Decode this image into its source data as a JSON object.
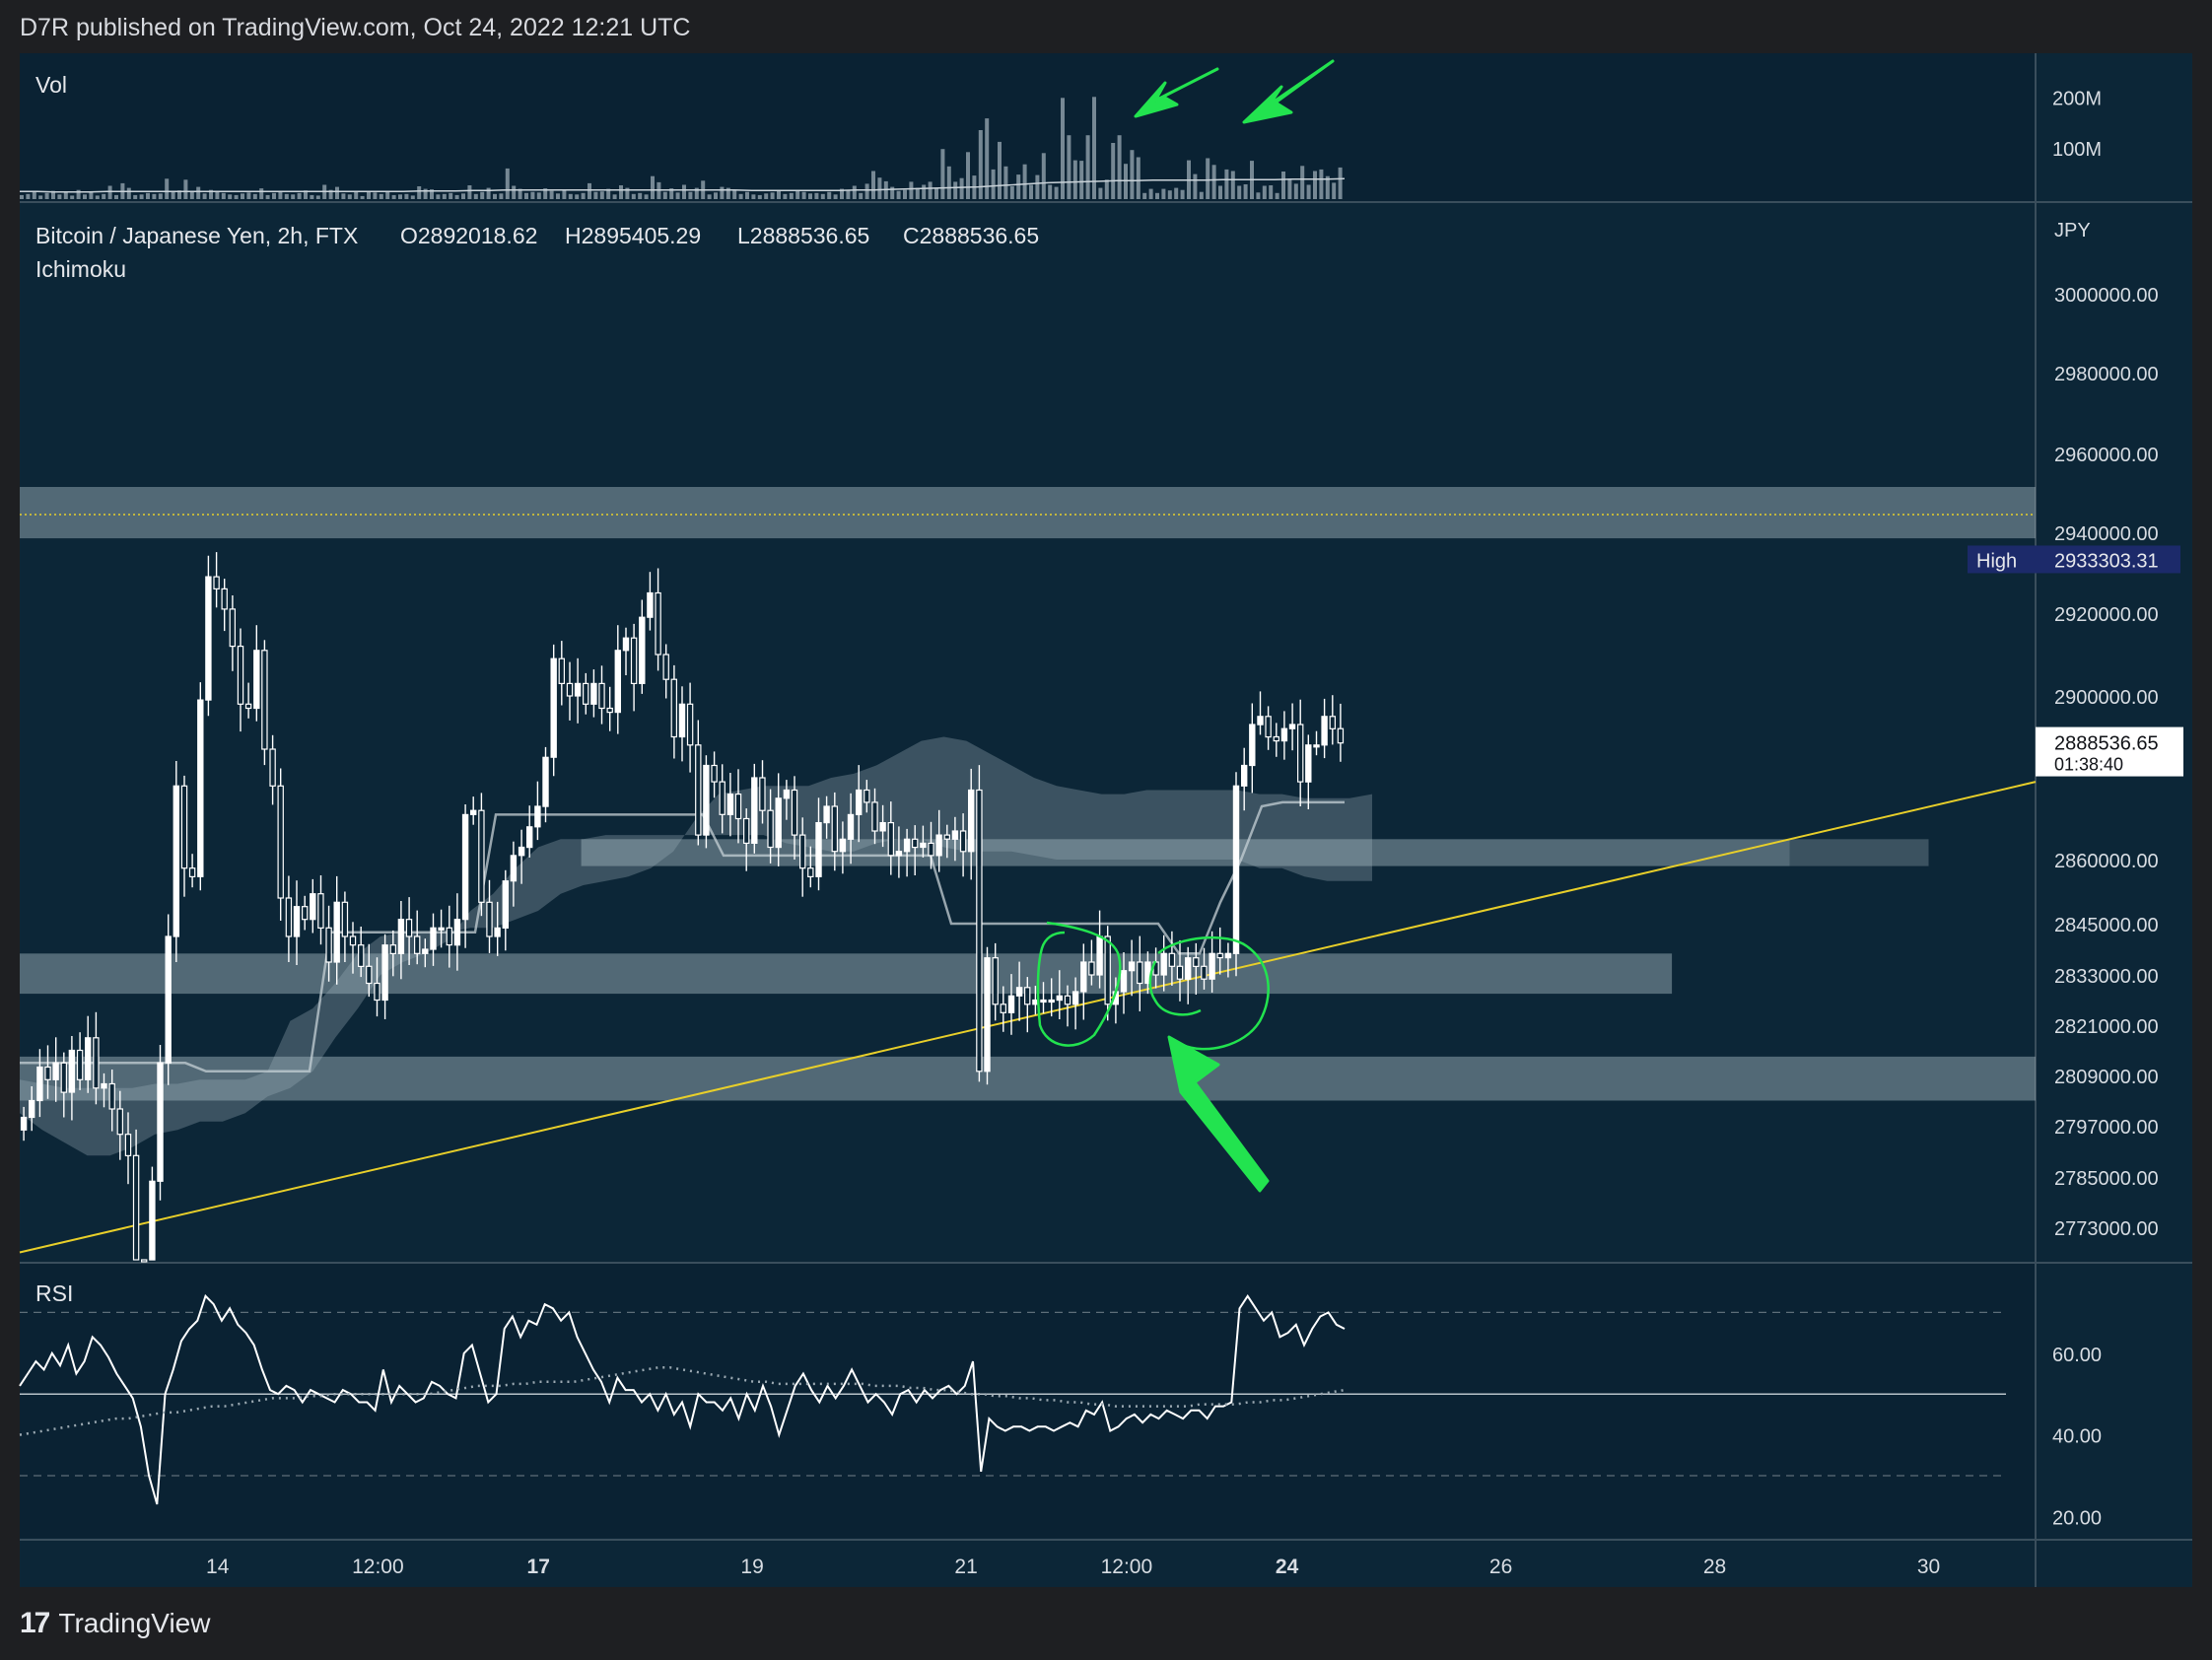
{
  "header": {
    "published": "D7R published on TradingView.com, Oct 24, 2022 12:21 UTC"
  },
  "footer": {
    "brand": "TradingView"
  },
  "colors": {
    "page_bg": "#1e1f22",
    "chart_bg": "#0c2637",
    "candle": "#ffffff",
    "zone": "#7a8e98",
    "trendline": "#e8cf2a",
    "annotation_green": "#22e34f",
    "price_tag_bg": "#1c2a6a"
  },
  "chart_data": [
    {
      "type": "bar",
      "panel": "volume",
      "title": "Vol",
      "y_ticks": [
        "200M",
        "100M"
      ],
      "ylim": [
        0,
        270
      ],
      "y_unit": "M",
      "values": [
        8,
        10,
        14,
        7,
        12,
        16,
        9,
        13,
        7,
        18,
        9,
        14,
        7,
        10,
        26,
        8,
        31,
        22,
        8,
        9,
        12,
        10,
        11,
        40,
        14,
        17,
        38,
        16,
        24,
        11,
        18,
        14,
        12,
        9,
        8,
        11,
        13,
        10,
        21,
        8,
        12,
        14,
        10,
        9,
        12,
        17,
        8,
        7,
        28,
        18,
        24,
        11,
        9,
        14,
        6,
        14,
        13,
        10,
        16,
        8,
        9,
        10,
        7,
        25,
        20,
        19,
        9,
        10,
        12,
        8,
        11,
        27,
        10,
        14,
        22,
        10,
        11,
        60,
        26,
        20,
        12,
        14,
        13,
        21,
        16,
        11,
        19,
        10,
        9,
        12,
        31,
        14,
        15,
        20,
        9,
        27,
        22,
        10,
        12,
        9,
        45,
        33,
        14,
        21,
        13,
        28,
        14,
        22,
        36,
        9,
        13,
        24,
        22,
        18,
        10,
        14,
        9,
        8,
        11,
        13,
        18,
        10,
        12,
        16,
        14,
        11,
        12,
        10,
        14,
        9,
        20,
        17,
        26,
        12,
        30,
        55,
        42,
        35,
        24,
        16,
        18,
        34,
        22,
        28,
        34,
        21,
        98,
        64,
        34,
        41,
        92,
        46,
        135,
        158,
        58,
        112,
        64,
        25,
        48,
        68,
        28,
        47,
        90,
        28,
        24,
        198,
        125,
        76,
        75,
        125,
        200,
        22,
        38,
        110,
        125,
        69,
        96,
        82,
        12,
        20,
        12,
        20,
        17,
        22,
        18,
        76,
        49,
        14,
        80,
        67,
        26,
        58,
        55,
        26,
        29,
        75,
        13,
        26,
        27,
        12,
        54,
        40,
        30,
        65,
        28,
        55,
        58,
        45,
        32,
        62
      ],
      "avg_line": [
        15,
        15,
        14,
        14,
        14,
        15,
        15,
        15,
        15,
        15,
        15,
        15,
        15,
        15,
        15,
        15,
        15,
        15,
        15,
        15,
        15,
        15,
        15,
        16,
        16,
        16,
        17,
        17,
        18,
        18,
        18,
        18,
        18,
        18,
        18,
        18,
        18,
        18,
        18,
        18,
        18,
        18,
        17,
        17,
        17,
        17,
        17,
        17,
        18,
        18,
        19,
        20,
        21,
        22,
        23,
        24,
        26,
        28,
        30,
        32,
        33,
        34,
        35,
        36,
        36,
        37,
        37,
        37,
        37,
        38,
        38,
        38,
        38,
        39,
        39,
        39,
        40
      ]
    },
    {
      "type": "candlestick",
      "panel": "price",
      "title": "Bitcoin / Japanese Yen, 2h, FTX",
      "indicator": "Ichimoku",
      "ohlc": {
        "O": "O2892018.62",
        "H": "H2895405.29",
        "L": "L2888536.65",
        "C": "C2888536.65"
      },
      "currency": "JPY",
      "ylim": [
        2764000,
        3010000
      ],
      "y_ticks": [
        "3000000.00",
        "2980000.00",
        "2960000.00",
        "2940000.00",
        "2920000.00",
        "2900000.00",
        "2860000.00",
        "2845000.00",
        "2833000.00",
        "2821000.00",
        "2809000.00",
        "2797000.00",
        "2785000.00",
        "2773000.00"
      ],
      "y_tick_values": [
        3000000,
        2980000,
        2960000,
        2940000,
        2920000,
        2900000,
        2860000,
        2845000,
        2833000,
        2821000,
        2809000,
        2797000,
        2785000,
        2773000
      ],
      "x_ticks": [
        {
          "label": "14",
          "x": 14.0,
          "bold": false
        },
        {
          "label": "12:00",
          "x": 15.5,
          "bold": false
        },
        {
          "label": "17",
          "x": 17.0,
          "bold": true
        },
        {
          "label": "19",
          "x": 19.0,
          "bold": false
        },
        {
          "label": "21",
          "x": 21.0,
          "bold": false
        },
        {
          "label": "12:00",
          "x": 22.5,
          "bold": false
        },
        {
          "label": "24",
          "x": 24.0,
          "bold": true
        },
        {
          "label": "26",
          "x": 26.0,
          "bold": false
        },
        {
          "label": "28",
          "x": 28.0,
          "bold": false
        },
        {
          "label": "30",
          "x": 30.0,
          "bold": false
        }
      ],
      "xlim": [
        12.15,
        31.0
      ],
      "high_label": {
        "text": "High",
        "value": "2933303.31",
        "price": 2933303.31
      },
      "last_price": {
        "value": "2888536.65",
        "countdown": "01:38:40",
        "price": 2888536.65
      },
      "resistance_line": 2944500,
      "zones": [
        {
          "from_x": 12.15,
          "to_x": 31.0,
          "low": 2938500,
          "high": 2951500
        },
        {
          "from_x": 17.4,
          "to_x": 28.7,
          "low": 2858500,
          "high": 2865000
        },
        {
          "from_x": 28.7,
          "to_x": 30.0,
          "low": 2858500,
          "high": 2865000
        },
        {
          "from_x": 12.15,
          "to_x": 27.6,
          "low": 2828500,
          "high": 2838000
        },
        {
          "from_x": 12.15,
          "to_x": 31.0,
          "low": 2803000,
          "high": 2813500
        }
      ],
      "trendline": [
        [
          12.15,
          2767000
        ],
        [
          31.0,
          2879000
        ]
      ],
      "closes": [
        2799000,
        2803000,
        2811000,
        2808000,
        2812000,
        2805000,
        2815000,
        2808000,
        2818000,
        2806000,
        2807000,
        2801000,
        2795000,
        2790000,
        2760000,
        2750000,
        2784000,
        2812000,
        2842000,
        2878000,
        2858000,
        2856000,
        2899000,
        2929000,
        2926000,
        2921000,
        2912000,
        2898000,
        2897000,
        2911000,
        2887000,
        2878000,
        2851000,
        2842000,
        2849000,
        2846000,
        2852000,
        2844000,
        2836000,
        2850000,
        2842000,
        2840000,
        2835000,
        2831000,
        2827000,
        2840000,
        2838000,
        2846000,
        2842000,
        2838000,
        2839000,
        2844000,
        2844000,
        2840000,
        2846000,
        2871000,
        2872000,
        2850000,
        2842000,
        2844000,
        2855000,
        2861000,
        2863000,
        2868000,
        2873000,
        2885000,
        2909000,
        2903000,
        2900000,
        2903000,
        2898000,
        2903000,
        2897000,
        2896000,
        2911000,
        2914000,
        2903000,
        2919000,
        2925000,
        2910000,
        2904000,
        2890000,
        2898000,
        2888000,
        2866000,
        2883000,
        2879000,
        2871000,
        2876000,
        2870000,
        2864000,
        2880000,
        2872000,
        2863000,
        2875000,
        2877000,
        2866000,
        2858000,
        2856000,
        2869000,
        2873000,
        2862000,
        2865000,
        2871000,
        2877000,
        2874000,
        2867000,
        2869000,
        2861000,
        2862000,
        2865000,
        2863000,
        2864000,
        2861000,
        2866000,
        2865000,
        2867000,
        2862000,
        2877000,
        2810000,
        2837000,
        2826000,
        2824000,
        2828000,
        2830000,
        2826000,
        2827000,
        2827000,
        2827000,
        2828000,
        2826000,
        2829000,
        2836000,
        2833000,
        2842000,
        2826000,
        2829000,
        2834000,
        2836000,
        2831000,
        2836000,
        2833000,
        2838000,
        2835000,
        2832000,
        2837000,
        2835000,
        2832000,
        2838000,
        2837000,
        2838000,
        2878000,
        2883000,
        2893000,
        2895000,
        2890000,
        2889000,
        2892000,
        2893000,
        2879000,
        2888000,
        2888000,
        2895000,
        2892000,
        2888500
      ],
      "cloud_upper": [
        2808000,
        2807000,
        2806000,
        2806000,
        2806000,
        2806000,
        2807000,
        2807000,
        2808000,
        2808000,
        2808000,
        2810000,
        2822000,
        2825000,
        2831000,
        2838000,
        2842000,
        2843000,
        2843000,
        2843000,
        2844000,
        2844000,
        2846000,
        2848000,
        2852000,
        2854000,
        2855000,
        2856000,
        2858000,
        2862000,
        2870000,
        2876000,
        2877000,
        2878000,
        2878000,
        2878000,
        2880000,
        2881000,
        2883000,
        2886000,
        2889000,
        2890000,
        2889000,
        2886000,
        2883000,
        2880000,
        2878000,
        2877000,
        2876000,
        2876000,
        2877000,
        2877000,
        2877000,
        2877000,
        2877000,
        2876000,
        2876000,
        2875000,
        2875000,
        2875000,
        2876000
      ],
      "cloud_lower": [
        2800000,
        2796000,
        2793000,
        2790000,
        2790000,
        2792000,
        2795000,
        2796000,
        2798000,
        2798000,
        2800000,
        2804000,
        2806000,
        2810000,
        2818000,
        2825000,
        2833000,
        2836000,
        2838000,
        2841000,
        2848000,
        2852000,
        2858000,
        2863000,
        2865000,
        2865000,
        2866000,
        2866000,
        2866000,
        2866000,
        2866000,
        2866000,
        2866000,
        2866000,
        2864000,
        2863000,
        2862000,
        2862000,
        2864000,
        2865000,
        2865000,
        2863000,
        2862000,
        2862000,
        2862000,
        2861000,
        2860000,
        2860000,
        2860000,
        2860000,
        2860000,
        2860000,
        2860000,
        2860000,
        2860000,
        2858000,
        2858000,
        2856000,
        2855000,
        2855000,
        2855000
      ],
      "kijun": [
        2812000,
        2812000,
        2812000,
        2812000,
        2812000,
        2812000,
        2812000,
        2812000,
        2812000,
        2810000,
        2810000,
        2810000,
        2810000,
        2810000,
        2810000,
        2843000,
        2843000,
        2843000,
        2843000,
        2843000,
        2843000,
        2843000,
        2843000,
        2871000,
        2871000,
        2871000,
        2871000,
        2871000,
        2871000,
        2871000,
        2871000,
        2871000,
        2871000,
        2871000,
        2861000,
        2861000,
        2861000,
        2861000,
        2861000,
        2861000,
        2861000,
        2861000,
        2861000,
        2861000,
        2861000,
        2845000,
        2845000,
        2845000,
        2845000,
        2845000,
        2845000,
        2845000,
        2845000,
        2845000,
        2845000,
        2845000,
        2838000,
        2838000,
        2850000,
        2860000,
        2873000,
        2874000,
        2874000,
        2874000,
        2874000
      ]
    },
    {
      "type": "line",
      "panel": "rsi",
      "title": "RSI",
      "ylim": [
        16,
        80
      ],
      "y_ticks": [
        "60.00",
        "40.00",
        "20.00"
      ],
      "y_tick_values": [
        60,
        40,
        20
      ],
      "bands": [
        70,
        50,
        30
      ],
      "series": [
        {
          "role": "rsi",
          "values": [
            52,
            55,
            58,
            56,
            60,
            57,
            62,
            55,
            58,
            64,
            62,
            59,
            55,
            52,
            49,
            42,
            30,
            23,
            50,
            56,
            63,
            66,
            68,
            74,
            72,
            68,
            71,
            67,
            65,
            62,
            56,
            51,
            50,
            52,
            51,
            48,
            51,
            50,
            49,
            48,
            51,
            50,
            48,
            48,
            46,
            56,
            48,
            52,
            50,
            48,
            49,
            53,
            52,
            50,
            49,
            60,
            62,
            55,
            48,
            50,
            66,
            69,
            64,
            68,
            67,
            72,
            71,
            68,
            70,
            64,
            60,
            56,
            53,
            48,
            54,
            51,
            51,
            48,
            50,
            46,
            50,
            45,
            48,
            42,
            50,
            48,
            48,
            46,
            49,
            44,
            50,
            46,
            52,
            47,
            40,
            46,
            52,
            55,
            51,
            48,
            52,
            49,
            52,
            56,
            52,
            48,
            50,
            48,
            45,
            50,
            51,
            48,
            51,
            49,
            51,
            52,
            50,
            52,
            58,
            31,
            44,
            42,
            41,
            42,
            42,
            41,
            42,
            42,
            41,
            42,
            43,
            42,
            46,
            45,
            48,
            41,
            42,
            44,
            45,
            43,
            45,
            44,
            46,
            45,
            44,
            46,
            46,
            44,
            47,
            47,
            48,
            71,
            74,
            71,
            68,
            70,
            64,
            65,
            67,
            62,
            66,
            69,
            70,
            67,
            66
          ]
        },
        {
          "role": "rsi-ma",
          "values": [
            40,
            40.5,
            41,
            41.5,
            42,
            42.5,
            43,
            43.5,
            44,
            44,
            44.5,
            45,
            45.5,
            45.5,
            46,
            46.5,
            47,
            47,
            47.5,
            48,
            48.5,
            49,
            49,
            49,
            49.5,
            49.5,
            50,
            50,
            50,
            50,
            50,
            50,
            50,
            50,
            50,
            50.5,
            51,
            51.5,
            52,
            52,
            52,
            52.5,
            52.5,
            53,
            53,
            53,
            53,
            53.5,
            54,
            54.5,
            55,
            55.5,
            56,
            56.5,
            56.5,
            56,
            55.5,
            55,
            54.5,
            54,
            53.5,
            53,
            53,
            52.5,
            52.5,
            52.5,
            52.5,
            52.5,
            52.5,
            52.5,
            52.5,
            52,
            52,
            52,
            51.5,
            51.5,
            51,
            51,
            50.5,
            50,
            50,
            49.5,
            49.5,
            49,
            49,
            48.5,
            48.5,
            48,
            48,
            47.5,
            47.5,
            47,
            47,
            47,
            47,
            47,
            47,
            47,
            47.5,
            47.5,
            47.5,
            47.5,
            48,
            48,
            48.5,
            48.5,
            49,
            49.5,
            50,
            50.5,
            51
          ]
        }
      ]
    }
  ]
}
